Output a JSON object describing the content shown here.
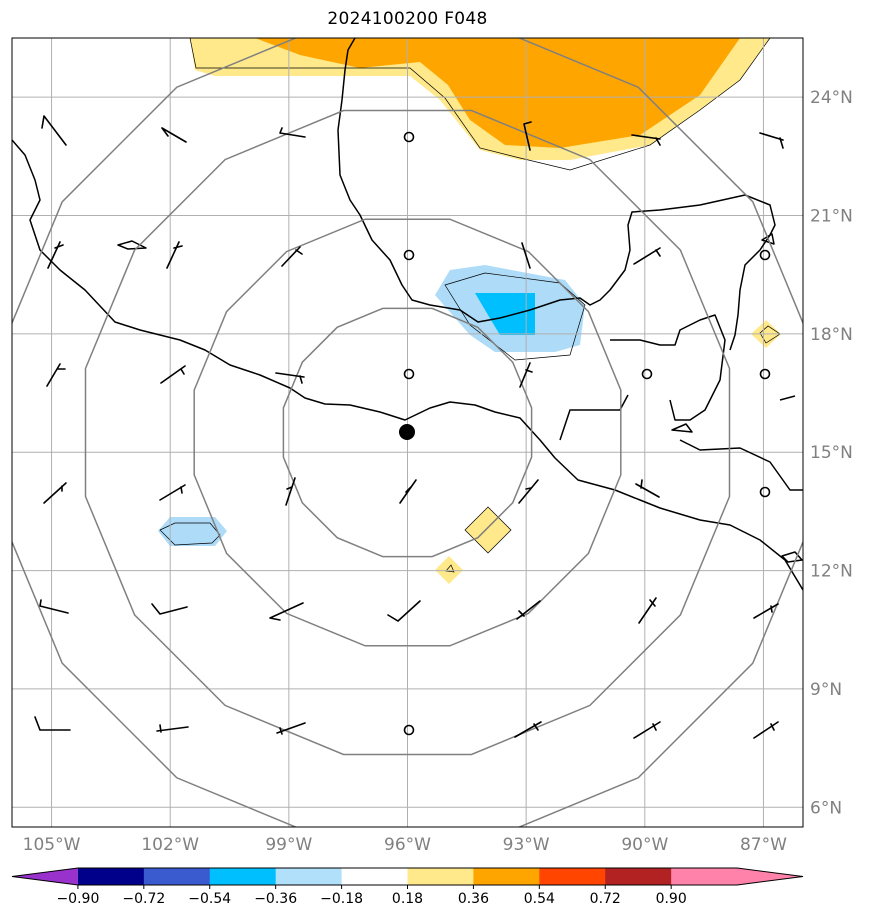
{
  "title": "2024100200 F048",
  "map": {
    "lon_min": -106,
    "lon_max": -86,
    "lat_min": 5.5,
    "lat_max": 25.5,
    "storm_center": {
      "lon": -96.0,
      "lat": 15.5
    },
    "range_rings_deg": [
      3.2,
      5.5,
      8.3,
      10.5
    ],
    "lat_ticks": [
      {
        "value": 24,
        "label": "24°N"
      },
      {
        "value": 21,
        "label": "21°N"
      },
      {
        "value": 18,
        "label": "18°N"
      },
      {
        "value": 15,
        "label": "15°N"
      },
      {
        "value": 12,
        "label": "12°N"
      },
      {
        "value": 9,
        "label": "9°N"
      },
      {
        "value": 6,
        "label": "6°N"
      }
    ],
    "lon_ticks": [
      {
        "value": -105,
        "label": "105°W"
      },
      {
        "value": -102,
        "label": "102°W"
      },
      {
        "value": -99,
        "label": "99°W"
      },
      {
        "value": -96,
        "label": "96°W"
      },
      {
        "value": -93,
        "label": "93°W"
      },
      {
        "value": -90,
        "label": "90°W"
      },
      {
        "value": -87,
        "label": "87°W"
      }
    ],
    "colors": {
      "grid": "#b0b0b0",
      "ring": "#808080",
      "coast": "#000000",
      "light_yellow": "#ffe98a",
      "orange": "#ffa500",
      "light_blue": "#aedcf8",
      "cyan": "#00bfff"
    }
  },
  "colorbar": {
    "colors": [
      "#9932cc",
      "#00008b",
      "#3a5bd0",
      "#00bfff",
      "#b0e0fa",
      "#ffffff",
      "#ffe98a",
      "#ffa500",
      "#ff4500",
      "#b22222",
      "#ff82ab",
      "#ff82ab"
    ],
    "ticks": [
      "−0.90",
      "−0.72",
      "−0.54",
      "−0.36",
      "−0.18",
      "0.18",
      "0.36",
      "0.54",
      "0.72",
      "0.90"
    ]
  }
}
